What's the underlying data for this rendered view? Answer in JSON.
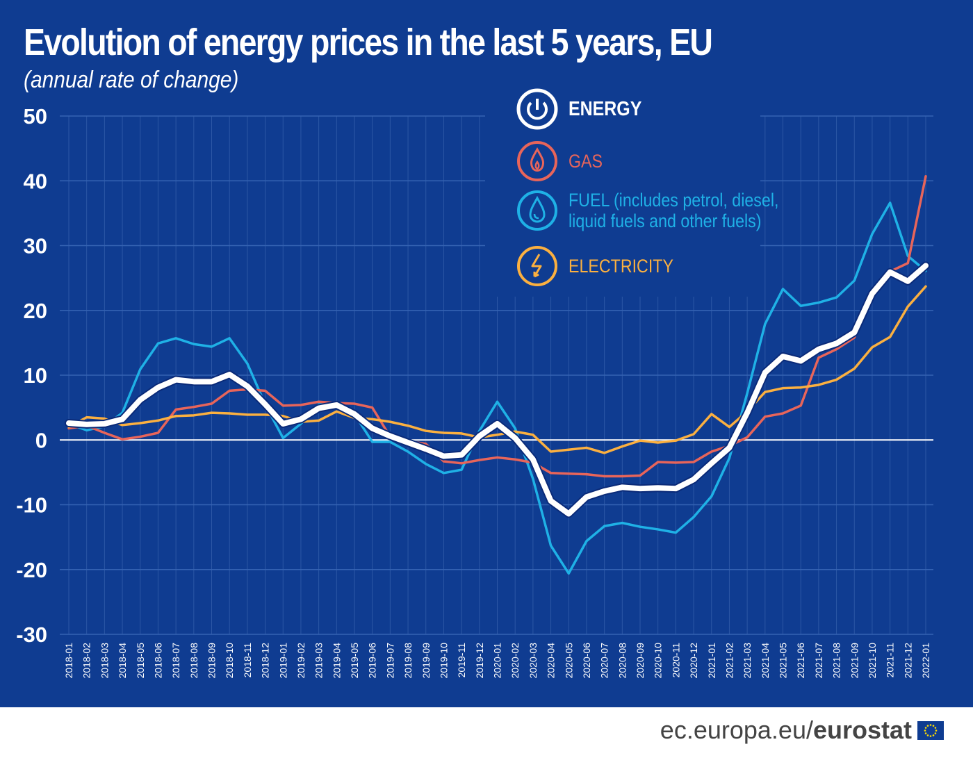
{
  "title": "Evolution of energy prices in the last 5 years, EU",
  "subtitle": "(annual rate of change)",
  "footer": {
    "site_prefix": "ec.europa.eu/",
    "site_brand": "eurostat"
  },
  "chart_data": {
    "type": "line",
    "title": "Evolution of energy prices in the last 5 years, EU",
    "subtitle": "(annual rate of change)",
    "ylim": [
      -30,
      50
    ],
    "yticks": [
      50,
      40,
      30,
      20,
      10,
      0,
      -10,
      -20,
      -30
    ],
    "grid": true,
    "legend_placement": "top-right",
    "x": [
      "2018-01",
      "2018-02",
      "2018-03",
      "2018-04",
      "2018-05",
      "2018-06",
      "2018-07",
      "2018-08",
      "2018-09",
      "2018-10",
      "2018-11",
      "2018-12",
      "2019-01",
      "2019-02",
      "2019-03",
      "2019-04",
      "2019-05",
      "2019-06",
      "2019-07",
      "2019-08",
      "2019-09",
      "2019-10",
      "2019-11",
      "2019-12",
      "2020-01",
      "2020-02",
      "2020-03",
      "2020-04",
      "2020-05",
      "2020-06",
      "2020-07",
      "2020-08",
      "2020-09",
      "2020-10",
      "2020-11",
      "2020-12",
      "2021-01",
      "2021-02",
      "2021-03",
      "2021-04",
      "2021-05",
      "2021-06",
      "2021-07",
      "2021-08",
      "2021-09",
      "2021-10",
      "2021-11",
      "2021-12",
      "2022-01"
    ],
    "series": [
      {
        "name": "ENERGY",
        "legend": [
          "ENERGY"
        ],
        "color": "#ffffff",
        "icon": "power-icon",
        "values": [
          2.6,
          2.4,
          2.5,
          3.2,
          6.2,
          8.1,
          9.3,
          9.0,
          9.0,
          10.1,
          8.3,
          5.5,
          2.5,
          3.2,
          4.9,
          5.4,
          4.0,
          1.8,
          0.6,
          -0.4,
          -1.4,
          -2.5,
          -2.3,
          0.6,
          2.5,
          0.3,
          -3.0,
          -9.4,
          -11.4,
          -8.8,
          -7.9,
          -7.3,
          -7.5,
          -7.4,
          -7.5,
          -6.1,
          -3.6,
          -1.2,
          4.2,
          10.4,
          12.9,
          12.2,
          14.0,
          14.9,
          16.6,
          22.6,
          25.9,
          24.5,
          26.9
        ]
      },
      {
        "name": "GAS",
        "legend": [
          "GAS"
        ],
        "color": "#e8655a",
        "icon": "flame-icon",
        "values": [
          1.8,
          2.2,
          1.1,
          0.1,
          0.5,
          1.1,
          4.7,
          5.1,
          5.6,
          7.6,
          7.8,
          7.6,
          5.3,
          5.4,
          5.9,
          5.7,
          5.6,
          5.0,
          0.5,
          -0.2,
          -0.6,
          -3.3,
          -3.6,
          -3.1,
          -2.7,
          -3.0,
          -3.5,
          -5.1,
          -5.2,
          -5.3,
          -5.6,
          -5.6,
          -5.5,
          -3.4,
          -3.5,
          -3.4,
          -1.8,
          -0.9,
          0.4,
          3.6,
          4.1,
          5.3,
          12.7,
          14.0,
          15.8,
          22.2,
          26.0,
          27.3,
          40.7
        ]
      },
      {
        "name": "FUEL (includes petrol, diesel, liquid fuels and other fuels)",
        "legend": [
          "FUEL (includes petrol, diesel,",
          "liquid fuels and other fuels)"
        ],
        "color": "#1fb1e6",
        "icon": "droplet-icon",
        "values": [
          2.5,
          1.5,
          2.1,
          4.2,
          10.9,
          14.9,
          15.7,
          14.8,
          14.4,
          15.7,
          11.8,
          5.5,
          0.3,
          2.5,
          5.5,
          5.7,
          4.0,
          -0.3,
          -0.3,
          -1.8,
          -3.7,
          -5.1,
          -4.6,
          1.4,
          5.9,
          1.8,
          -6.0,
          -16.3,
          -20.6,
          -15.6,
          -13.3,
          -12.8,
          -13.4,
          -13.8,
          -14.3,
          -11.9,
          -8.7,
          -2.8,
          7.2,
          17.9,
          23.3,
          20.7,
          21.2,
          22.0,
          24.6,
          31.8,
          36.6,
          28.4,
          26.1
        ]
      },
      {
        "name": "ELECTRICITY",
        "legend": [
          "ELECTRICITY"
        ],
        "color": "#fbb040",
        "icon": "lightning-icon",
        "values": [
          2.0,
          3.5,
          3.3,
          2.3,
          2.6,
          3.0,
          3.7,
          3.8,
          4.2,
          4.1,
          3.9,
          3.9,
          3.7,
          2.8,
          3.0,
          4.4,
          3.4,
          3.2,
          2.8,
          2.2,
          1.4,
          1.1,
          1.0,
          0.4,
          0.8,
          1.3,
          0.8,
          -1.8,
          -1.5,
          -1.2,
          -2.0,
          -1.0,
          -0.1,
          -0.4,
          -0.1,
          0.9,
          4.0,
          2.0,
          4.4,
          7.4,
          8.0,
          8.1,
          8.5,
          9.3,
          11.0,
          14.3,
          15.9,
          20.6,
          23.7
        ]
      }
    ]
  }
}
